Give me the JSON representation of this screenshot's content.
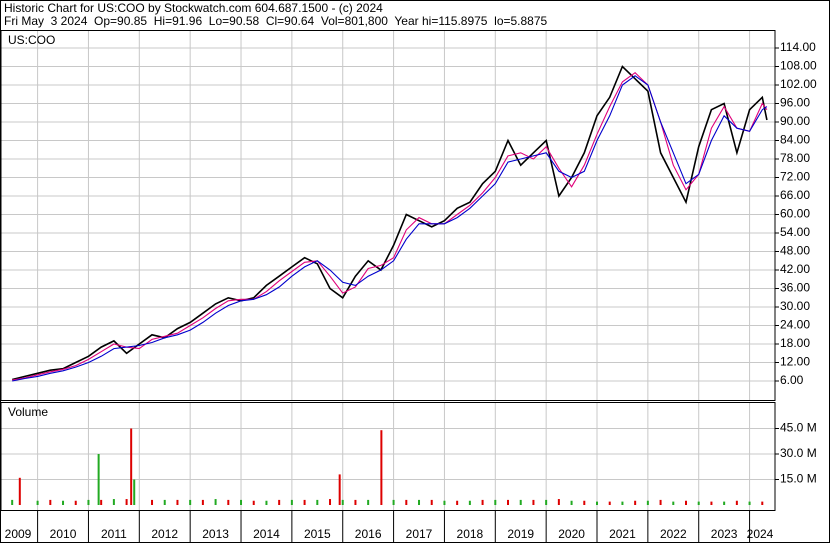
{
  "header": {
    "line1": "Historic Chart for US:COO by Stockwatch.com 604.687.1500 - (c) 2024",
    "line2": "Fri May  3 2024  Op=90.85  Hi=91.96  Lo=90.58  Cl=90.64  Vol=801,800  Year hi=115.8975  lo=5.8875"
  },
  "chart_data": [
    {
      "type": "line",
      "title": "US:COO",
      "grid": true,
      "xlim": [
        2009.3,
        2024.5
      ],
      "ylim": [
        0,
        120
      ],
      "yticks": [
        {
          "value": 6,
          "label": "6.00"
        },
        {
          "value": 12,
          "label": "12.00"
        },
        {
          "value": 18,
          "label": "18.00"
        },
        {
          "value": 24,
          "label": "24.00"
        },
        {
          "value": 30,
          "label": "30.00"
        },
        {
          "value": 36,
          "label": "36.00"
        },
        {
          "value": 42,
          "label": "42.00"
        },
        {
          "value": 48,
          "label": "48.00"
        },
        {
          "value": 54,
          "label": "54.00"
        },
        {
          "value": 60,
          "label": "60.00"
        },
        {
          "value": 66,
          "label": "66.00"
        },
        {
          "value": 72,
          "label": "72.00"
        },
        {
          "value": 78,
          "label": "78.00"
        },
        {
          "value": 84,
          "label": "84.00"
        },
        {
          "value": 90,
          "label": "90.00"
        },
        {
          "value": 96,
          "label": "96.00"
        },
        {
          "value": 102,
          "label": "102.00"
        },
        {
          "value": 108,
          "label": "108.00"
        },
        {
          "value": 114,
          "label": "114.00"
        }
      ],
      "x": [
        2009.5,
        2009.75,
        2010,
        2010.25,
        2010.5,
        2010.75,
        2011,
        2011.25,
        2011.5,
        2011.75,
        2012,
        2012.25,
        2012.5,
        2012.75,
        2013,
        2013.25,
        2013.5,
        2013.75,
        2014,
        2014.25,
        2014.5,
        2014.75,
        2015,
        2015.25,
        2015.5,
        2015.75,
        2016,
        2016.25,
        2016.5,
        2016.75,
        2017,
        2017.25,
        2017.5,
        2017.75,
        2018,
        2018.25,
        2018.5,
        2018.75,
        2019,
        2019.25,
        2019.5,
        2019.75,
        2020,
        2020.25,
        2020.5,
        2020.75,
        2021,
        2021.25,
        2021.5,
        2021.75,
        2022,
        2022.25,
        2022.5,
        2022.75,
        2023,
        2023.25,
        2023.5,
        2023.75,
        2024,
        2024.25,
        2024.34
      ],
      "series": [
        {
          "color": "#000000",
          "values": [
            6.5,
            7.5,
            8.5,
            9.5,
            10,
            12,
            14,
            17,
            19,
            15,
            18,
            21,
            20,
            23,
            25,
            28,
            31,
            33,
            32,
            33,
            37,
            40,
            43,
            46,
            44,
            36,
            33,
            40,
            45,
            42,
            50,
            60,
            58,
            56,
            58,
            62,
            64,
            70,
            74,
            84,
            76,
            80,
            84,
            66,
            72,
            80,
            92,
            98,
            108,
            104,
            100,
            80,
            72,
            64,
            82,
            94,
            96,
            80,
            94,
            98,
            90.64
          ]
        },
        {
          "color": "#e0007a",
          "values": [
            6.3,
            7,
            8,
            9,
            9.8,
            11,
            13,
            15.5,
            18,
            17,
            16.5,
            19.5,
            20.5,
            21.5,
            24,
            26.5,
            29.5,
            32,
            32.5,
            32.5,
            35,
            38.5,
            41.5,
            44.5,
            45,
            40,
            34.5,
            36.5,
            42.5,
            43.5,
            46,
            55,
            59,
            57,
            57,
            60,
            63,
            67,
            72,
            79,
            80,
            78,
            82,
            75,
            69,
            76,
            86,
            95,
            103,
            106,
            102,
            90,
            76,
            68,
            73,
            88,
            95,
            88,
            87,
            96,
            94
          ]
        },
        {
          "color": "#0000cc",
          "values": [
            6,
            6.8,
            7.5,
            8.5,
            9.3,
            10.5,
            12,
            14,
            16.5,
            17,
            17.5,
            18.5,
            20,
            21,
            22.5,
            25,
            28,
            30.5,
            32,
            32.5,
            34,
            36.5,
            40,
            43,
            45,
            42,
            38,
            37,
            40,
            42,
            45,
            52,
            57,
            57,
            57,
            59,
            62,
            66,
            70,
            77,
            78,
            79,
            80,
            74,
            72,
            74,
            84,
            92,
            102,
            105,
            102,
            90,
            80,
            70,
            73,
            84,
            92,
            88,
            87,
            94,
            95
          ]
        }
      ]
    },
    {
      "type": "bar",
      "title": "Volume",
      "xlim": [
        2009.3,
        2024.5
      ],
      "ylim": [
        0,
        60000000
      ],
      "yticks": [
        {
          "value": 15000000,
          "label": "15.0 M"
        },
        {
          "value": 30000000,
          "label": "30.0 M"
        },
        {
          "value": 45000000,
          "label": "45.0 M"
        }
      ],
      "xticks": [
        2009,
        2010,
        2011,
        2012,
        2013,
        2014,
        2015,
        2016,
        2017,
        2018,
        2019,
        2020,
        2021,
        2022,
        2023,
        2024
      ],
      "series": [
        {
          "color": "#22aa22",
          "x": [
            2009.5,
            2010,
            2010.5,
            2011,
            2011.2,
            2011.5,
            2011.9,
            2012.5,
            2013,
            2013.5,
            2014,
            2014.5,
            2015,
            2015.5,
            2016,
            2016.5,
            2017,
            2017.5,
            2018,
            2018.5,
            2019,
            2019.5,
            2020,
            2020.5,
            2021,
            2021.5,
            2022,
            2022.5,
            2023,
            2023.5,
            2024
          ],
          "values": [
            3000000,
            2500000,
            2500000,
            3000000,
            30000000,
            3500000,
            15000000,
            3000000,
            3000000,
            3500000,
            3000000,
            2500000,
            3000000,
            3000000,
            3000000,
            3000000,
            3000000,
            3000000,
            2500000,
            2500000,
            3000000,
            3000000,
            3000000,
            2500000,
            2000000,
            2000000,
            2500000,
            2000000,
            2000000,
            2000000,
            2000000
          ]
        },
        {
          "color": "#dd0000",
          "x": [
            2009.65,
            2010.25,
            2010.75,
            2011.25,
            2011.75,
            2011.84,
            2012.25,
            2012.75,
            2013.25,
            2013.75,
            2014.25,
            2014.75,
            2015.25,
            2015.75,
            2015.94,
            2016.25,
            2016.76,
            2017.25,
            2017.75,
            2018.25,
            2018.75,
            2019.25,
            2019.75,
            2020.25,
            2020.75,
            2021.25,
            2021.75,
            2022.25,
            2022.75,
            2023.25,
            2023.75,
            2024.25
          ],
          "values": [
            16000000,
            3000000,
            2500000,
            3000000,
            3500000,
            45000000,
            3000000,
            3000000,
            3000000,
            3000000,
            2500000,
            3000000,
            3000000,
            3500000,
            18000000,
            3000000,
            44000000,
            3000000,
            3000000,
            2500000,
            3000000,
            3000000,
            3000000,
            3500000,
            2500000,
            2000000,
            2500000,
            3000000,
            2500000,
            2000000,
            2500000,
            2000000
          ]
        }
      ]
    }
  ]
}
